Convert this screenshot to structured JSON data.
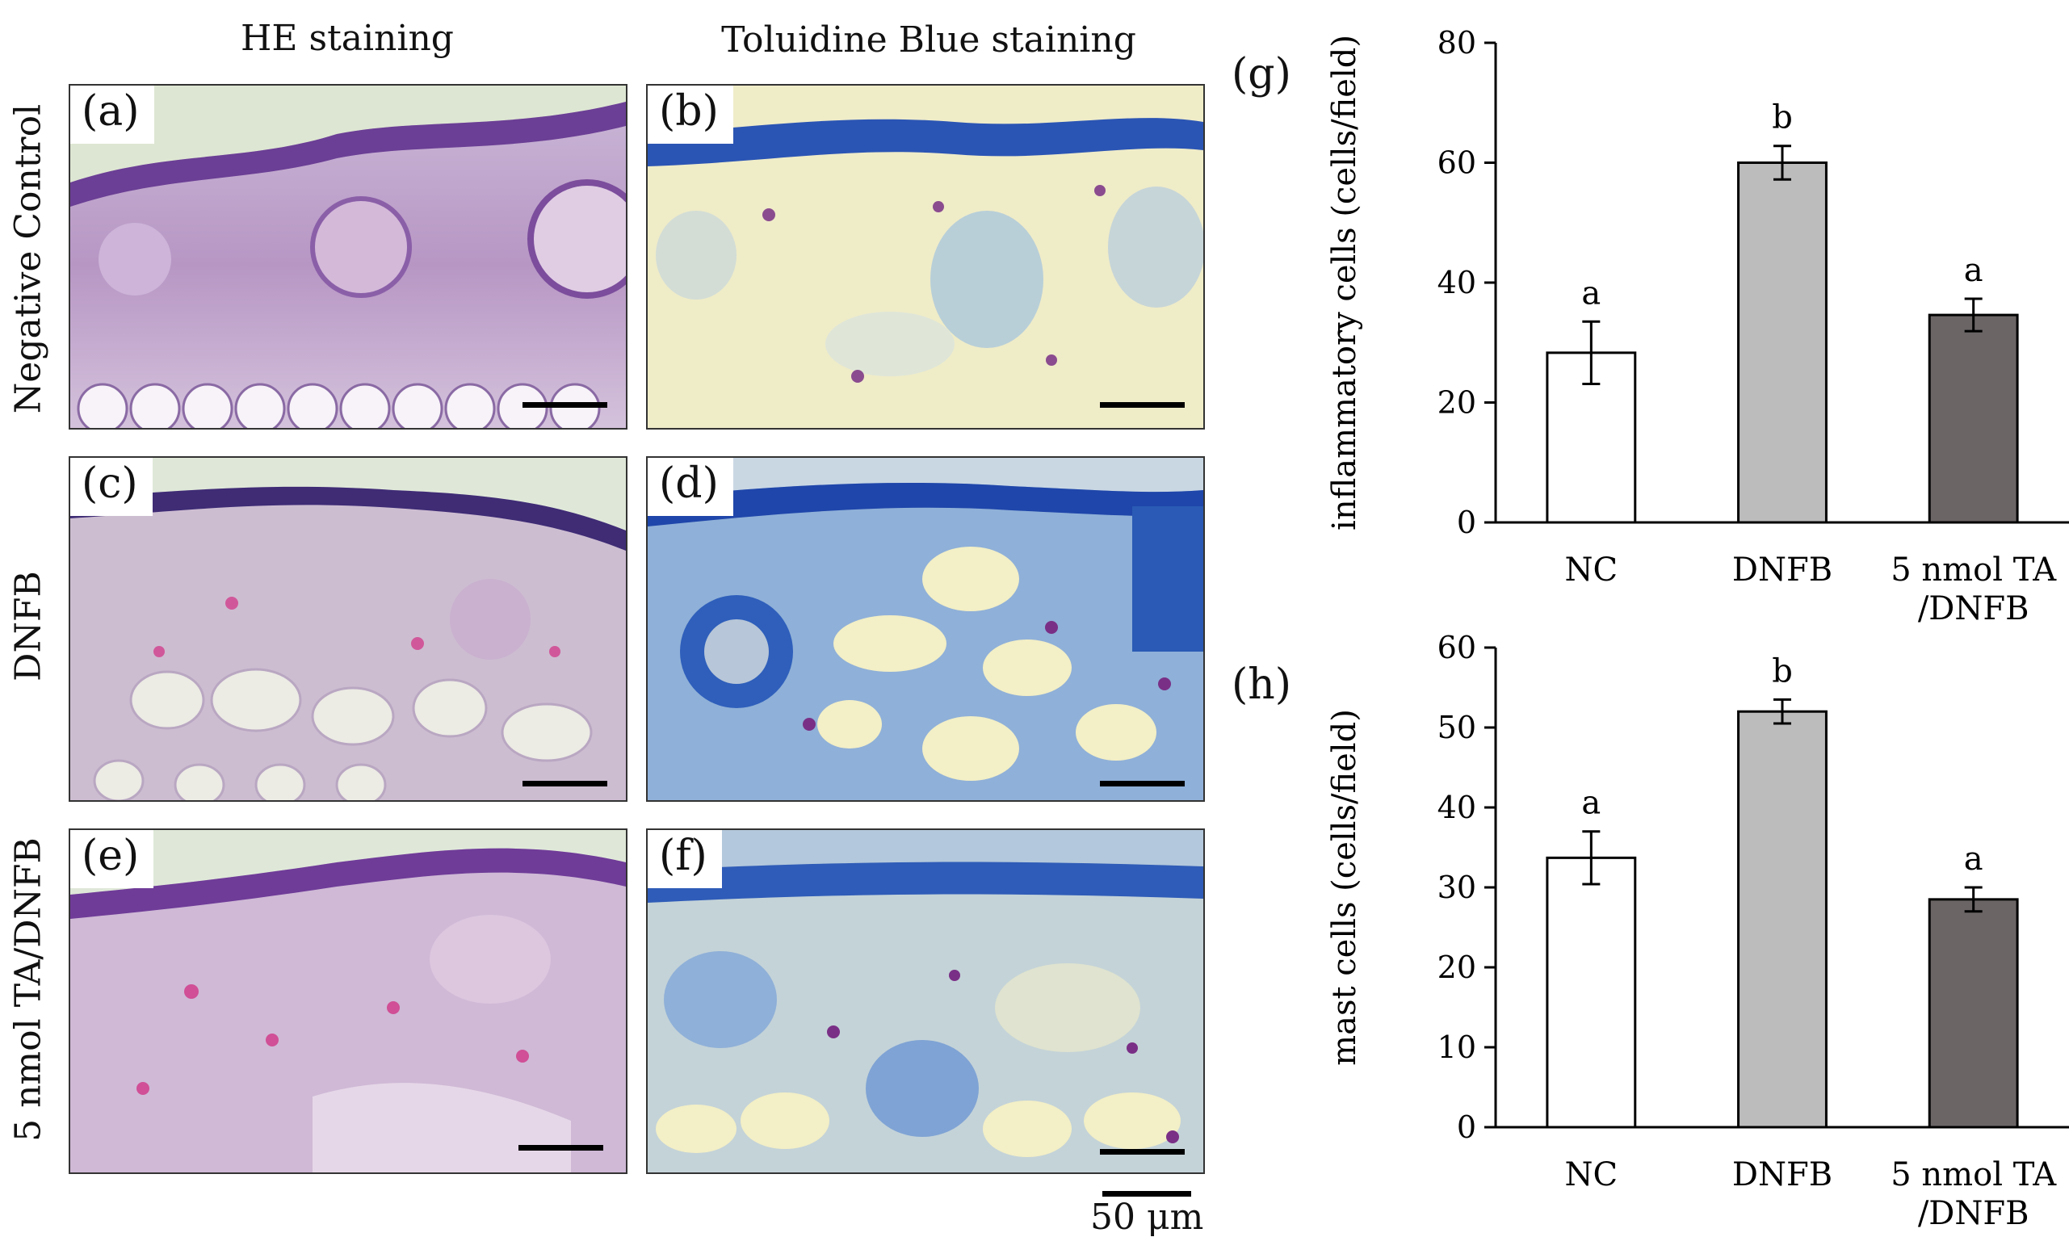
{
  "column_headers": [
    "HE staining",
    "Toluidine Blue staining"
  ],
  "row_labels": [
    "Negative Control",
    "DNFB",
    "5 nmol TA/DNFB"
  ],
  "panels": [
    {
      "label": "(a)",
      "stain": "HE"
    },
    {
      "label": "(b)",
      "stain": "TB"
    },
    {
      "label": "(c)",
      "stain": "HE"
    },
    {
      "label": "(d)",
      "stain": "TB"
    },
    {
      "label": "(e)",
      "stain": "HE"
    },
    {
      "label": "(f)",
      "stain": "TB"
    }
  ],
  "scale_bar_text": "50 μm",
  "colors": {
    "he_background": "#d9c3dc",
    "he_epidermis": "#6b3f95",
    "tb_background": "#efecc8",
    "tb_epidermis": "#2b55b4",
    "bar_nc": "#ffffff",
    "bar_dnfb": "#bcbcbc",
    "bar_ta": "#6b6566"
  },
  "chart_data": [
    {
      "letter": "(g)",
      "type": "bar",
      "categories": [
        "NC",
        "DNFB",
        "5 nmol TA\n/DNFB"
      ],
      "values": [
        28.3,
        60.0,
        34.6
      ],
      "errors": [
        5.2,
        2.8,
        2.7
      ],
      "significance": [
        "a",
        "b",
        "a"
      ],
      "title": "",
      "xlabel": "",
      "ylabel": "inflammatory cells (cells/field)",
      "ylim": [
        0,
        80
      ],
      "yticks": [
        0,
        20,
        40,
        60,
        80
      ],
      "grid": false
    },
    {
      "letter": "(h)",
      "type": "bar",
      "categories": [
        "NC",
        "DNFB",
        "5 nmol TA\n/DNFB"
      ],
      "values": [
        33.7,
        52.0,
        28.5
      ],
      "errors": [
        3.3,
        1.5,
        1.5
      ],
      "significance": [
        "a",
        "b",
        "a"
      ],
      "title": "",
      "xlabel": "",
      "ylabel": "mast cells (cells/field)",
      "ylim": [
        0,
        60
      ],
      "yticks": [
        0,
        10,
        20,
        30,
        40,
        50,
        60
      ],
      "grid": false
    }
  ]
}
